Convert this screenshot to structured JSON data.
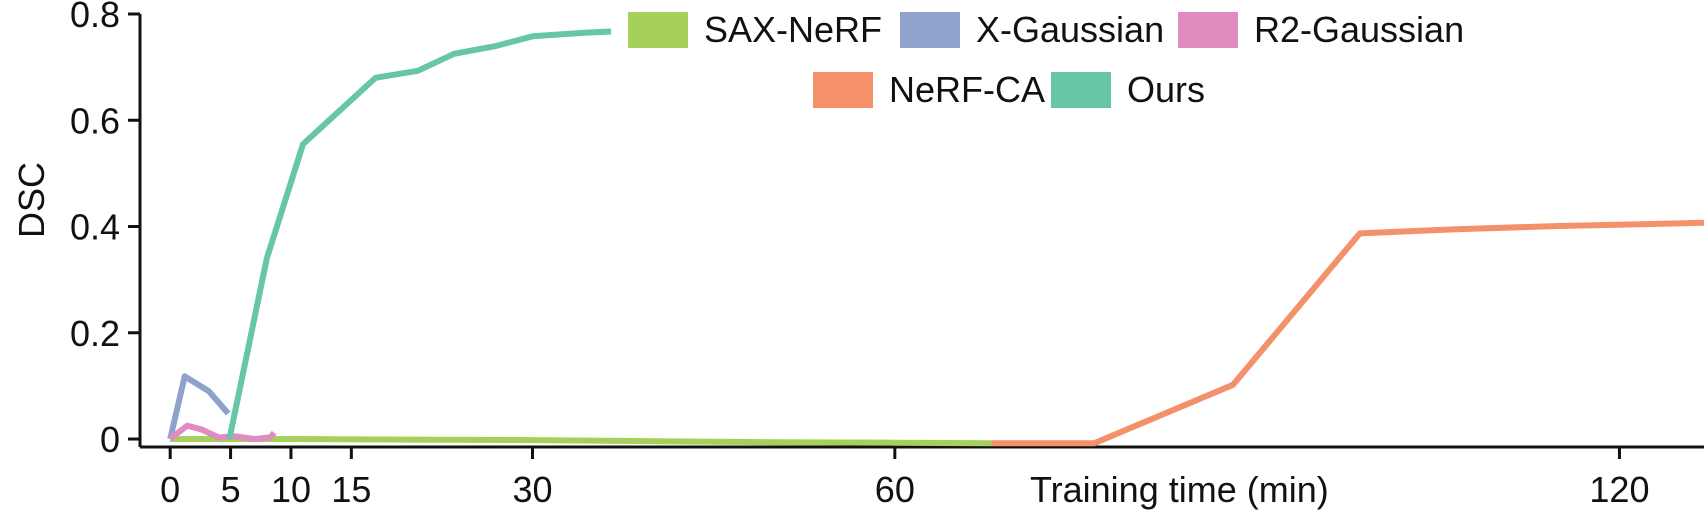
{
  "chart_data": {
    "type": "line",
    "title": "",
    "xlabel": "Training time (min)",
    "ylabel": "DSC",
    "xlim": [
      -2.5,
      127
    ],
    "ylim": [
      -0.015,
      0.8
    ],
    "xticks": [
      {
        "value": 0,
        "label": "0"
      },
      {
        "value": 5,
        "label": "5"
      },
      {
        "value": 10,
        "label": "10"
      },
      {
        "value": 15,
        "label": "15"
      },
      {
        "value": 30,
        "label": "30"
      },
      {
        "value": 60,
        "label": "60"
      },
      {
        "value": 120,
        "label": "120"
      }
    ],
    "yticks": [
      {
        "value": 0,
        "label": "0"
      },
      {
        "value": 0.2,
        "label": "0.2"
      },
      {
        "value": 0.4,
        "label": "0.4"
      },
      {
        "value": 0.6,
        "label": "0.6"
      },
      {
        "value": 0.8,
        "label": "0.8"
      }
    ],
    "grid": false,
    "legend_position": "top-center",
    "legend": [
      "SAX-NeRF",
      "X-Gaussian",
      "R2-Gaussian",
      "NeRF-CA",
      "Ours"
    ],
    "series": [
      {
        "name": "SAX-NeRF",
        "color": "#a6d05c",
        "x": [
          0,
          10,
          20,
          30,
          40,
          50,
          60,
          68
        ],
        "y": [
          0.0,
          0.0,
          -0.001,
          -0.002,
          -0.004,
          -0.006,
          -0.007,
          -0.008
        ]
      },
      {
        "name": "X-Gaussian",
        "color": "#8fa2cc",
        "x": [
          0,
          1.2,
          3.2,
          4.8
        ],
        "y": [
          0.0,
          0.118,
          0.09,
          0.048
        ]
      },
      {
        "name": "R2-Gaussian",
        "color": "#e08cc0",
        "x": [
          0,
          1.4,
          2.6,
          4.0,
          5.4,
          7.0,
          8.3,
          8.6
        ],
        "y": [
          0.0,
          0.025,
          0.018,
          0.003,
          0.005,
          0.0,
          0.003,
          0.012
        ]
      },
      {
        "name": "NeRF-CA",
        "color": "#f4916a",
        "x": [
          68,
          76.5,
          88,
          98.5,
          106.5,
          115,
          127
        ],
        "y": [
          -0.008,
          -0.008,
          0.102,
          0.387,
          0.395,
          0.401,
          0.407
        ]
      },
      {
        "name": "Ours",
        "color": "#66c6a6",
        "x": [
          4.9,
          8.0,
          11.0,
          17.0,
          20.5,
          23.5,
          27.0,
          30.0,
          34.5,
          36.5
        ],
        "y": [
          0.0,
          0.34,
          0.555,
          0.68,
          0.693,
          0.725,
          0.74,
          0.758,
          0.765,
          0.767
        ]
      }
    ]
  }
}
